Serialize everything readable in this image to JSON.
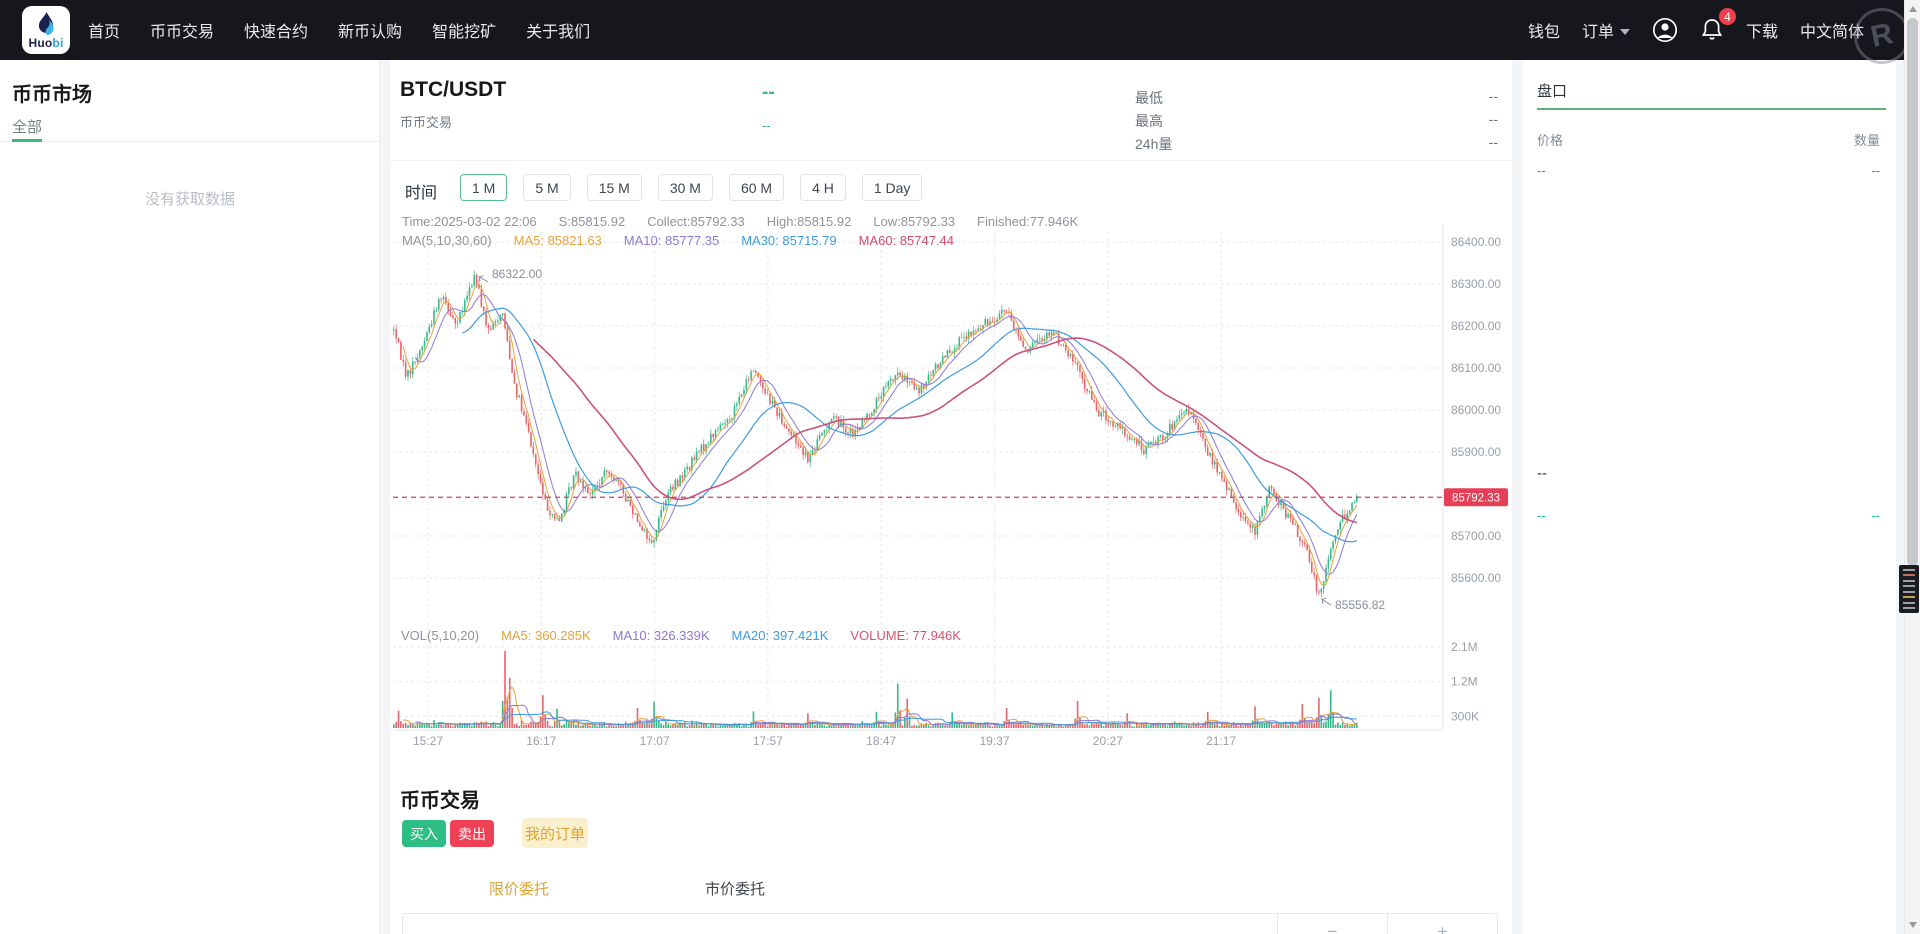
{
  "nav": {
    "brand": {
      "dark": "Huo",
      "blue": "bi"
    },
    "watermark": "R",
    "items": [
      "首页",
      "币币交易",
      "快速合约",
      "新币认购",
      "智能挖矿",
      "关于我们"
    ],
    "right": {
      "wallet": "钱包",
      "orders": "订单",
      "badge_count": "4",
      "download": "下载",
      "language": "中文简体"
    }
  },
  "market_panel": {
    "title": "币币市场",
    "tab_all": "全部",
    "empty_text": "没有获取数据"
  },
  "chart_header": {
    "pair": "BTC/USDT",
    "subtitle": "币币交易",
    "price_dash": "--",
    "change_dash": "--",
    "stats": [
      {
        "label": "最低",
        "value": "--"
      },
      {
        "label": "最高",
        "value": "--"
      },
      {
        "label": "24h量",
        "value": "--"
      }
    ]
  },
  "timeframe": {
    "label": "时间",
    "options": [
      "1 M",
      "5 M",
      "15 M",
      "30 M",
      "60 M",
      "4 H",
      "1 Day"
    ],
    "active_index": 0
  },
  "chart_data": {
    "type": "candlestick",
    "info_line": {
      "time": "Time:2025-03-02 22:06",
      "s": "S:85815.92",
      "collect": "Collect:85792.33",
      "high": "High:85815.92",
      "low": "Low:85792.33",
      "finished": "Finished:77.946K"
    },
    "ma_line": {
      "label": "MA(5,10,30,60)",
      "ma5": "MA5: 85821.63",
      "ma10": "MA10: 85777.35",
      "ma30": "MA30: 85715.79",
      "ma60": "MA60: 85747.44"
    },
    "vol_line": {
      "label": "VOL(5,10,20)",
      "ma5": "MA5: 360.285K",
      "ma10": "MA10: 326.339K",
      "ma20": "MA20: 397.421K",
      "volume": "VOLUME: 77.946K"
    },
    "y_ticks": [
      86400,
      86300,
      86200,
      86100,
      86000,
      85900,
      85700,
      85600
    ],
    "vol_ticks": [
      {
        "label": "2.1M",
        "value": 2100000
      },
      {
        "label": "1.2M",
        "value": 1200000
      },
      {
        "label": "300K",
        "value": 300000
      }
    ],
    "x_labels": [
      "15:27",
      "16:17",
      "17:07",
      "17:57",
      "18:47",
      "19:37",
      "20:27",
      "21:17"
    ],
    "current_price": {
      "value": 85792.33,
      "label": "85792.33"
    },
    "annotations": {
      "high": {
        "label": "86322.00",
        "price": 86322.0,
        "x": 81
      },
      "low": {
        "label": "85556.82",
        "price": 85556.82,
        "x": 925
      }
    },
    "candle_count": 408,
    "spacing": 2.366,
    "anchors": [
      [
        0,
        86190
      ],
      [
        13,
        86080
      ],
      [
        28,
        86150
      ],
      [
        48,
        86280
      ],
      [
        63,
        86200
      ],
      [
        81,
        86322
      ],
      [
        95,
        86180
      ],
      [
        108,
        86240
      ],
      [
        121,
        86060
      ],
      [
        135,
        85940
      ],
      [
        151,
        85780
      ],
      [
        165,
        85730
      ],
      [
        181,
        85850
      ],
      [
        198,
        85800
      ],
      [
        215,
        85860
      ],
      [
        235,
        85780
      ],
      [
        258,
        85680
      ],
      [
        271,
        85790
      ],
      [
        293,
        85860
      ],
      [
        315,
        85930
      ],
      [
        338,
        85990
      ],
      [
        360,
        86100
      ],
      [
        375,
        86030
      ],
      [
        395,
        85950
      ],
      [
        415,
        85885
      ],
      [
        438,
        85985
      ],
      [
        460,
        85940
      ],
      [
        480,
        86010
      ],
      [
        503,
        86090
      ],
      [
        525,
        86040
      ],
      [
        553,
        86140
      ],
      [
        583,
        86190
      ],
      [
        611,
        86240
      ],
      [
        633,
        86140
      ],
      [
        658,
        86190
      ],
      [
        681,
        86110
      ],
      [
        703,
        86000
      ],
      [
        728,
        85950
      ],
      [
        751,
        85905
      ],
      [
        771,
        85945
      ],
      [
        795,
        86000
      ],
      [
        815,
        85895
      ],
      [
        841,
        85775
      ],
      [
        861,
        85705
      ],
      [
        875,
        85815
      ],
      [
        895,
        85745
      ],
      [
        911,
        85675
      ],
      [
        925,
        85560
      ],
      [
        941,
        85705
      ],
      [
        955,
        85770
      ],
      [
        965,
        85795
      ]
    ],
    "volume_spikes": [
      [
        2,
        450000
      ],
      [
        47,
        2000000
      ],
      [
        49,
        1300000
      ],
      [
        63,
        850000
      ],
      [
        69,
        500000
      ],
      [
        103,
        520000
      ],
      [
        110,
        680000
      ],
      [
        152,
        430000
      ],
      [
        175,
        380000
      ],
      [
        204,
        420000
      ],
      [
        213,
        1150000
      ],
      [
        217,
        760000
      ],
      [
        236,
        400000
      ],
      [
        259,
        520000
      ],
      [
        289,
        700000
      ],
      [
        310,
        380000
      ],
      [
        344,
        420000
      ],
      [
        364,
        560000
      ],
      [
        384,
        620000
      ],
      [
        391,
        780000
      ],
      [
        396,
        980000
      ]
    ]
  },
  "trade_section": {
    "title": "币币交易",
    "buy": "买入",
    "sell": "卖出",
    "my_orders": "我的订单",
    "tab_limit": "限价委托",
    "tab_market": "市价委托",
    "stepper_minus": "−",
    "stepper_plus": "+"
  },
  "orderbook": {
    "title": "盘口",
    "col_price": "价格",
    "col_amount": "数量",
    "sell_price": "--",
    "sell_amount": "--",
    "last_price": "--",
    "buy_price": "--",
    "buy_amount": "--"
  },
  "colors": {
    "accent_green": "#2ebd85",
    "accent_red": "#ef4156",
    "candle_up": "#35b98a",
    "candle_down": "#e8646a",
    "ma5": "#e6a23c",
    "ma10": "#8d78d6",
    "ma30": "#3d9ce0",
    "ma60": "#c9537f",
    "price_line": "#d8405f",
    "price_badge": "#e53e55",
    "grid": "#ece7ea",
    "axis": "#e3e5e8",
    "tick_text": "#9aa0a8",
    "annotation": "#8a8f98"
  }
}
